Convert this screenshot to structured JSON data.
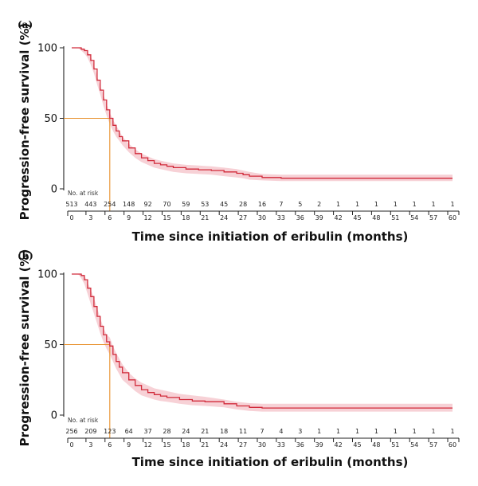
{
  "chart_data": [
    {
      "type": "line",
      "panel_label": "(a)",
      "xlabel": "Time since initiation of eribulin (months)",
      "ylabel": "Progression-free survival (%)",
      "ylim": [
        0,
        100
      ],
      "xlim": [
        0,
        60
      ],
      "yticks": [
        0,
        50,
        100
      ],
      "xticks": [
        0,
        3,
        6,
        9,
        12,
        15,
        18,
        21,
        24,
        27,
        30,
        33,
        36,
        39,
        42,
        45,
        48,
        51,
        54,
        57,
        60
      ],
      "median_reference": {
        "x": 6.0,
        "y": 50
      },
      "series": [
        {
          "x": [
            0,
            1,
            1.5,
            2,
            2.5,
            3,
            3.5,
            4,
            4.5,
            5,
            5.5,
            6,
            6.5,
            7,
            7.5,
            8,
            9,
            10,
            11,
            12,
            13,
            14,
            15,
            16,
            18,
            20,
            22,
            24,
            26,
            27,
            28,
            30,
            33,
            36,
            39,
            42,
            45,
            48,
            51,
            54,
            57,
            60
          ],
          "y": [
            100,
            100,
            99,
            98,
            95,
            91,
            85,
            77,
            70,
            63,
            56,
            50,
            45,
            41,
            37,
            34,
            29,
            25,
            22,
            20,
            18,
            17,
            16,
            15,
            14,
            13.5,
            13,
            12,
            11,
            10,
            9,
            8,
            7.5,
            7.5,
            7.5,
            7.5,
            7.5,
            7.5,
            7.5,
            7.5,
            7.5,
            7.5
          ],
          "ci_lower": [
            100,
            100,
            98,
            96,
            93,
            88,
            82,
            74,
            67,
            59,
            52,
            46,
            41,
            37,
            34,
            31,
            26,
            22,
            19,
            17,
            15,
            14,
            13,
            12,
            11,
            10.5,
            10,
            9,
            8,
            7.5,
            6.5,
            6,
            5.5,
            5.5,
            5.5,
            5.5,
            5.5,
            5.5,
            5.5,
            5.5,
            5.5,
            5.5
          ],
          "ci_upper": [
            100,
            100,
            100,
            99.5,
            97,
            94,
            88,
            80,
            73,
            67,
            60,
            54,
            49,
            45,
            41,
            37,
            32,
            28,
            25,
            23,
            21,
            20,
            19,
            18,
            17,
            16.5,
            16,
            15,
            14,
            13,
            12,
            10.5,
            10,
            10,
            10,
            10,
            10,
            10,
            10,
            10,
            10,
            10
          ]
        }
      ],
      "at_risk": {
        "title": "No. at risk",
        "values": [
          "513",
          "443",
          "254",
          "148",
          "92",
          "70",
          "59",
          "53",
          "45",
          "28",
          "16",
          "7",
          "5",
          "2",
          "1",
          "1",
          "1",
          "1",
          "1",
          "1",
          "1"
        ]
      }
    },
    {
      "type": "line",
      "panel_label": "(b)",
      "xlabel": "Time since initiation of eribulin (months)",
      "ylabel": "Progression-free survival (%)",
      "ylim": [
        0,
        100
      ],
      "xlim": [
        0,
        60
      ],
      "yticks": [
        0,
        50,
        100
      ],
      "xticks": [
        0,
        3,
        6,
        9,
        12,
        15,
        18,
        21,
        24,
        27,
        30,
        33,
        36,
        39,
        42,
        45,
        48,
        51,
        54,
        57,
        60
      ],
      "median_reference": {
        "x": 6.0,
        "y": 50
      },
      "series": [
        {
          "x": [
            0,
            1,
            1.5,
            2,
            2.5,
            3,
            3.5,
            4,
            4.5,
            5,
            5.5,
            6,
            6.5,
            7,
            7.5,
            8,
            9,
            10,
            11,
            12,
            13,
            14,
            15,
            17,
            19,
            21,
            24,
            26,
            28,
            30,
            33,
            36,
            39,
            42,
            45,
            48,
            51,
            54,
            57,
            60
          ],
          "y": [
            100,
            100,
            99,
            96,
            90,
            84,
            77,
            70,
            63,
            57,
            52,
            49,
            43,
            38,
            34,
            30,
            25,
            21,
            18,
            16,
            14.5,
            13.5,
            12.5,
            11,
            10,
            9.5,
            8,
            6.5,
            5.5,
            5,
            5,
            5,
            5,
            5,
            5,
            5,
            5,
            5,
            5,
            5
          ],
          "ci_lower": [
            100,
            100,
            97,
            93,
            86,
            79,
            72,
            65,
            58,
            52,
            47,
            43,
            38,
            33,
            29,
            25,
            21,
            17,
            14,
            12.5,
            11,
            10,
            9.5,
            8,
            7,
            6.5,
            5.5,
            4,
            3,
            2.5,
            2.5,
            2.5,
            2.5,
            2.5,
            2.5,
            2.5,
            2.5,
            2.5,
            2.5,
            2.5
          ],
          "ci_upper": [
            100,
            100,
            100,
            99,
            94,
            89,
            83,
            76,
            69,
            62,
            57,
            55,
            49,
            44,
            40,
            36,
            30,
            26,
            23,
            21,
            19,
            18,
            17,
            15,
            14,
            13,
            11,
            9.5,
            8.5,
            8,
            8,
            8,
            8,
            8,
            8,
            8,
            8,
            8,
            8,
            8
          ]
        }
      ],
      "at_risk": {
        "title": "No. at risk",
        "values": [
          "256",
          "209",
          "123",
          "64",
          "37",
          "28",
          "24",
          "21",
          "18",
          "11",
          "7",
          "4",
          "3",
          "1",
          "1",
          "1",
          "1",
          "1",
          "1",
          "1",
          "1"
        ]
      }
    }
  ]
}
